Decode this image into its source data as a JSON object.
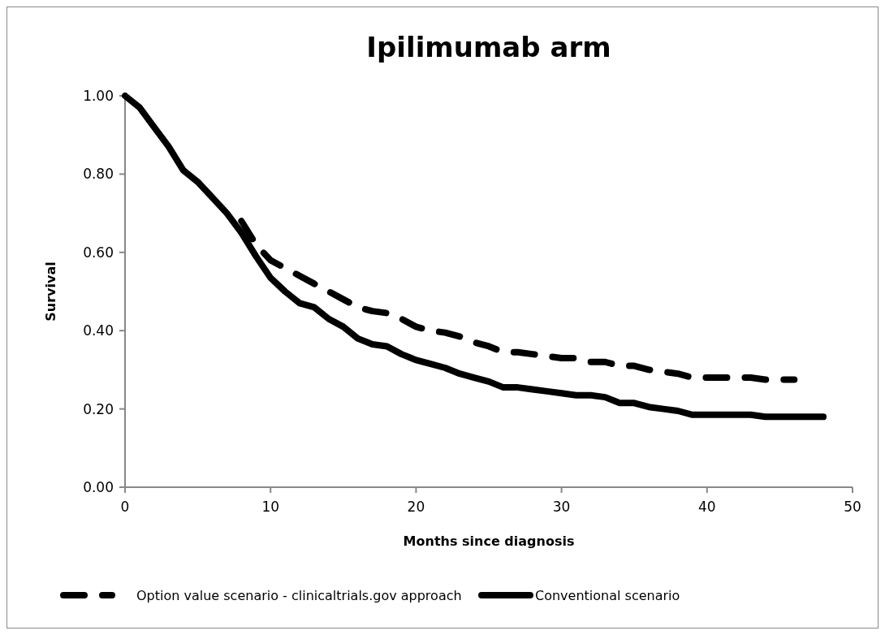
{
  "chart_data": {
    "type": "line",
    "title": "Ipilimumab arm",
    "xlabel": "Months since diagnosis",
    "ylabel": "Survival",
    "xlim": [
      0,
      50
    ],
    "xticks": [
      0,
      10,
      20,
      30,
      40,
      50
    ],
    "ylim": [
      0,
      1
    ],
    "yticks": [
      {
        "value": 0,
        "label": "0.00"
      },
      {
        "value": 0.2,
        "label": "0.20"
      },
      {
        "value": 0.4,
        "label": "0.40"
      },
      {
        "value": 0.6,
        "label": "0.60"
      },
      {
        "value": 0.8,
        "label": "0.80"
      },
      {
        "value": 1,
        "label": "1.00"
      }
    ],
    "grid": false,
    "legend": "bottom",
    "marker": "none",
    "series": [
      {
        "name": "Option value scenario - clinicaltrials.gov approach",
        "color": "#000000",
        "line_style": "dashed",
        "x": [
          8,
          9,
          10,
          11,
          12,
          13,
          14,
          15,
          16,
          17,
          18,
          19,
          20,
          21,
          22,
          23,
          24,
          25,
          26,
          27,
          28,
          29,
          30,
          31,
          32,
          33,
          34,
          35,
          36,
          37,
          38,
          39,
          40,
          41,
          42,
          43,
          44,
          45,
          46
        ],
        "values": [
          0.68,
          0.62,
          0.58,
          0.56,
          0.54,
          0.52,
          0.5,
          0.48,
          0.46,
          0.45,
          0.445,
          0.43,
          0.41,
          0.4,
          0.395,
          0.385,
          0.37,
          0.36,
          0.345,
          0.345,
          0.34,
          0.335,
          0.33,
          0.33,
          0.32,
          0.32,
          0.31,
          0.31,
          0.3,
          0.295,
          0.29,
          0.28,
          0.28,
          0.28,
          0.28,
          0.28,
          0.275,
          0.275,
          0.275
        ]
      },
      {
        "name": "Conventional scenario",
        "color": "#000000",
        "line_style": "solid",
        "x": [
          0,
          1,
          2,
          3,
          4,
          5,
          6,
          7,
          8,
          9,
          10,
          11,
          12,
          13,
          14,
          15,
          16,
          17,
          18,
          19,
          20,
          21,
          22,
          23,
          24,
          25,
          26,
          27,
          28,
          29,
          30,
          31,
          32,
          33,
          34,
          35,
          36,
          37,
          38,
          39,
          40,
          41,
          42,
          43,
          44,
          45,
          46,
          47,
          48
        ],
        "values": [
          1,
          0.97,
          0.92,
          0.87,
          0.81,
          0.78,
          0.74,
          0.7,
          0.65,
          0.59,
          0.535,
          0.5,
          0.47,
          0.46,
          0.43,
          0.41,
          0.38,
          0.365,
          0.36,
          0.34,
          0.325,
          0.315,
          0.305,
          0.29,
          0.28,
          0.27,
          0.255,
          0.255,
          0.25,
          0.245,
          0.24,
          0.235,
          0.235,
          0.23,
          0.215,
          0.215,
          0.205,
          0.2,
          0.195,
          0.185,
          0.185,
          0.185,
          0.185,
          0.185,
          0.18,
          0.18,
          0.18,
          0.18,
          0.18
        ]
      }
    ]
  }
}
